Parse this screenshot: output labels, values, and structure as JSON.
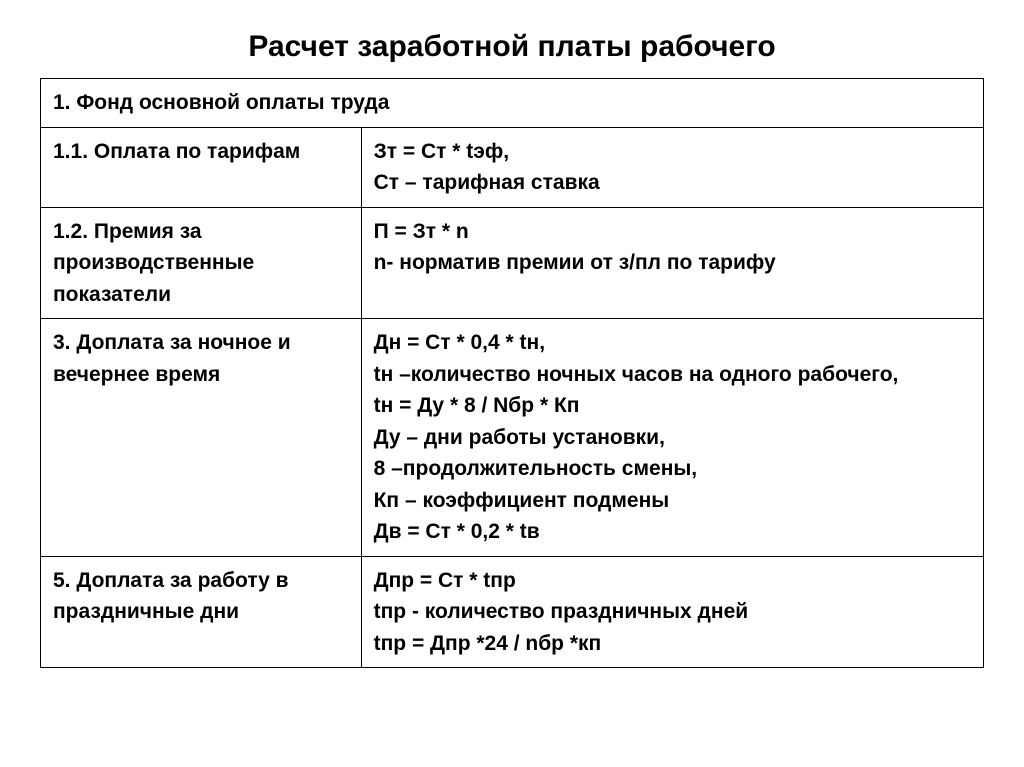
{
  "title": "Расчет заработной платы рабочего",
  "table": {
    "border_color": "#000000",
    "background_color": "#ffffff",
    "font_family": "Arial",
    "title_fontsize": 30,
    "cell_fontsize": 21,
    "cell_fontweight": "bold",
    "col_widths_pct": [
      34,
      66
    ],
    "rows": [
      {
        "type": "full",
        "left": "1. Фонд основной оплаты труда"
      },
      {
        "type": "two",
        "left": "1.1. Оплата по тарифам",
        "right_lines": [
          "Зт = Ст * tэф,",
          "Ст – тарифная ставка"
        ]
      },
      {
        "type": "two",
        "left": "1.2. Премия за производственные показатели",
        "right_lines": [
          "П = Зт * n",
          "n- норматив премии от з/пл по тарифу"
        ]
      },
      {
        "type": "two",
        "left": "3. Доплата за ночное и вечернее время",
        "right_lines": [
          "Дн = Ст * 0,4 * tн,",
          "tн –количество ночных часов на одного рабочего,",
          "tн = Ду * 8 / Nбр * Кп",
          "Ду – дни работы установки,",
          "8 –продолжительность смены,",
          "Кп – коэффициент подмены",
          "Дв = Ст * 0,2 * tв"
        ]
      },
      {
        "type": "two",
        "left": "5. Доплата за работу в праздничные дни",
        "right_lines": [
          "Дпр = Ст * tпр",
          "tпр - количество праздничных дней",
          "tпр = Дпр *24 / nбр *кп"
        ]
      }
    ]
  }
}
